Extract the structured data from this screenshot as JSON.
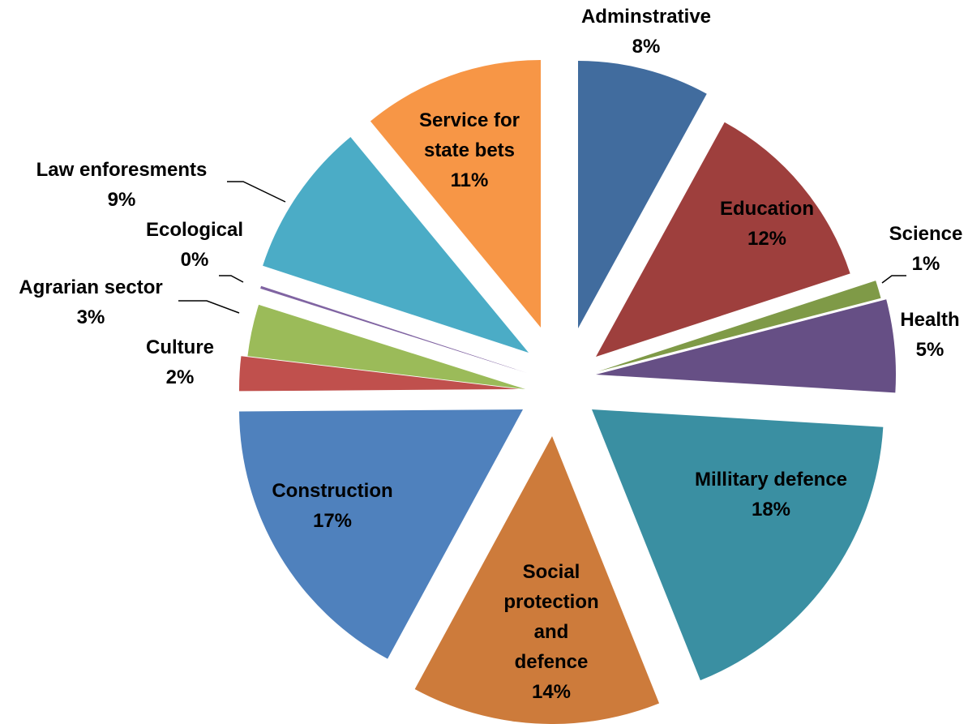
{
  "chart_data": {
    "type": "pie",
    "title": "",
    "slices": [
      {
        "name": "Adminstrative",
        "label_lines": [
          "Adminstrative"
        ],
        "pct_label": "8%",
        "value": 8,
        "color": "#416C9E"
      },
      {
        "name": "Education",
        "label_lines": [
          "Education"
        ],
        "pct_label": "12%",
        "value": 12,
        "color": "#9E3F3D"
      },
      {
        "name": "Science",
        "label_lines": [
          "Science"
        ],
        "pct_label": "1%",
        "value": 1,
        "color": "#7F9A47"
      },
      {
        "name": "Health",
        "label_lines": [
          "Health"
        ],
        "pct_label": "5%",
        "value": 5,
        "color": "#664F85"
      },
      {
        "name": "Millitary defence",
        "label_lines": [
          "Millitary defence"
        ],
        "pct_label": "18%",
        "value": 18,
        "color": "#3A8FA2"
      },
      {
        "name": "Social protection and defence",
        "label_lines": [
          "Social",
          "protection",
          "and",
          "defence"
        ],
        "pct_label": "14%",
        "value": 14,
        "color": "#CD7B3B"
      },
      {
        "name": "Construction",
        "label_lines": [
          "Construction"
        ],
        "pct_label": "17%",
        "value": 17,
        "color": "#4F81BD"
      },
      {
        "name": "Culture",
        "label_lines": [
          "Culture"
        ],
        "pct_label": "2%",
        "value": 2,
        "color": "#C0504D"
      },
      {
        "name": "Agrarian sector",
        "label_lines": [
          "Agrarian sector"
        ],
        "pct_label": "3%",
        "value": 3,
        "color": "#9BBB59"
      },
      {
        "name": "Ecological",
        "label_lines": [
          "Ecological"
        ],
        "pct_label": "0%",
        "value": 0.15,
        "color": "#8064A2"
      },
      {
        "name": "Law enforesments",
        "label_lines": [
          "Law enforesments"
        ],
        "pct_label": "9%",
        "value": 9,
        "color": "#4BACC6"
      },
      {
        "name": "Service for state bets",
        "label_lines": [
          "Service for",
          "state bets"
        ],
        "pct_label": "11%",
        "value": 11,
        "color": "#F79646"
      }
    ]
  }
}
